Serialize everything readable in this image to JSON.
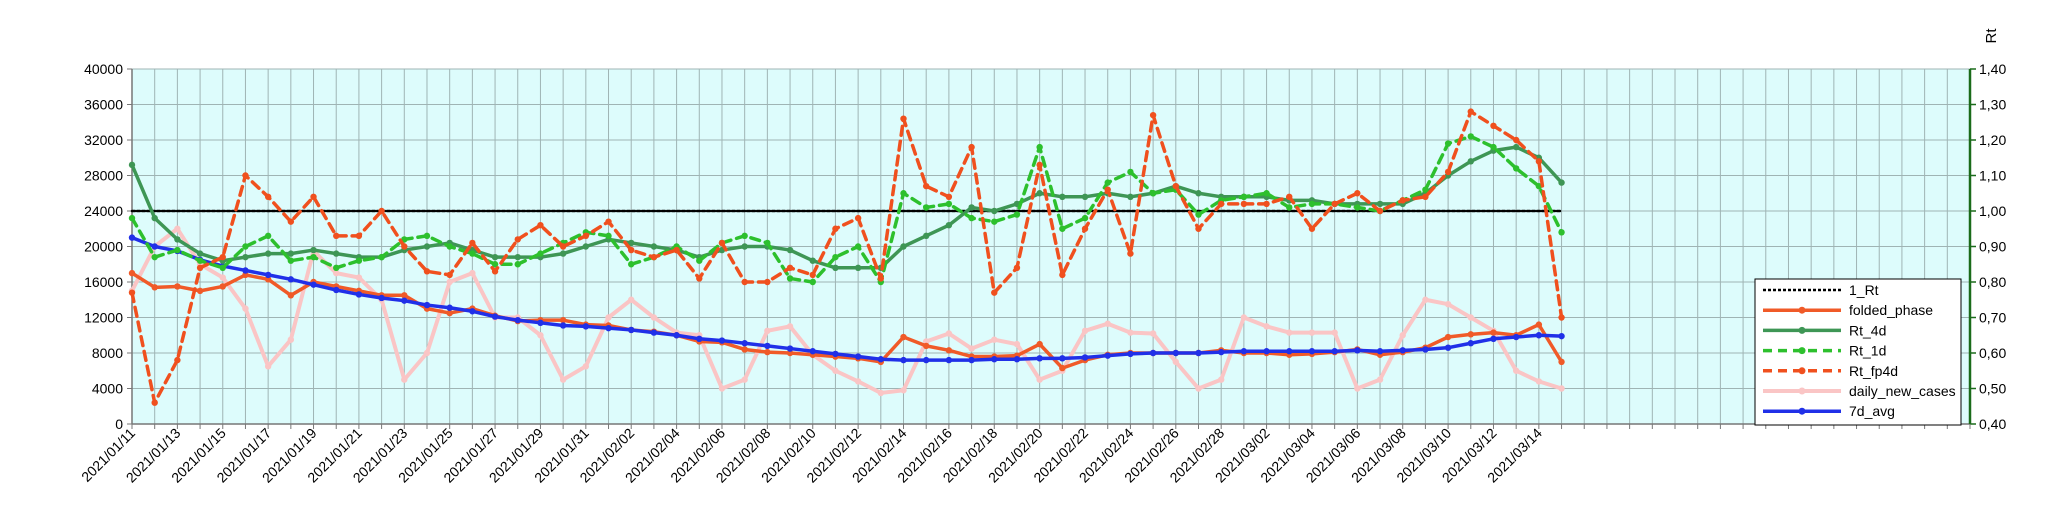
{
  "chart_data": {
    "type": "line",
    "title": "",
    "xlabel": "",
    "ylabel": "",
    "y2label": "Rt",
    "ylim": [
      0,
      40000
    ],
    "y2lim": [
      0.4,
      1.4
    ],
    "yticks": [
      "0",
      "4000",
      "8000",
      "12000",
      "16000",
      "20000",
      "24000",
      "28000",
      "32000",
      "36000",
      "40000"
    ],
    "y2ticks": [
      "0,40",
      "0,50",
      "0,60",
      "0,70",
      "0,80",
      "0,90",
      "1,00",
      "1,10",
      "1,20",
      "1,30",
      "1,40"
    ],
    "grid": true,
    "legend_position": "right",
    "colors": {
      "plot_background": "#ddfcfc",
      "grid": "#9fb4b4",
      "left_axis": "#777777",
      "right_axis": "#1a6b1a"
    },
    "x": [
      "2021/01/11",
      "2021/01/12",
      "2021/01/13",
      "2021/01/14",
      "2021/01/15",
      "2021/01/16",
      "2021/01/17",
      "2021/01/18",
      "2021/01/19",
      "2021/01/20",
      "2021/01/21",
      "2021/01/22",
      "2021/01/23",
      "2021/01/24",
      "2021/01/25",
      "2021/01/26",
      "2021/01/27",
      "2021/01/28",
      "2021/01/29",
      "2021/01/30",
      "2021/01/31",
      "2021/02/01",
      "2021/02/02",
      "2021/02/03",
      "2021/02/04",
      "2021/02/05",
      "2021/02/06",
      "2021/02/07",
      "2021/02/08",
      "2021/02/09",
      "2021/02/10",
      "2021/02/11",
      "2021/02/12",
      "2021/02/13",
      "2021/02/14",
      "2021/02/15",
      "2021/02/16",
      "2021/02/17",
      "2021/02/18",
      "2021/02/19",
      "2021/02/20",
      "2021/02/21",
      "2021/02/22",
      "2021/02/23",
      "2021/02/24",
      "2021/02/25",
      "2021/02/26",
      "2021/02/27",
      "2021/02/28",
      "2021/03/01",
      "2021/03/02",
      "2021/03/03",
      "2021/03/04",
      "2021/03/05",
      "2021/03/06",
      "2021/03/07",
      "2021/03/08",
      "2021/03/09",
      "2021/03/10",
      "2021/03/11",
      "2021/03/12",
      "2021/03/13",
      "2021/03/14",
      "2021/03/15"
    ],
    "x_axis_extent_days": 81,
    "x_tick_labels": [
      "2021/01/11",
      "2021/01/13",
      "2021/01/15",
      "2021/01/17",
      "2021/01/19",
      "2021/01/21",
      "2021/01/23",
      "2021/01/25",
      "2021/01/27",
      "2021/01/29",
      "2021/01/31",
      "2021/02/02",
      "2021/02/04",
      "2021/02/06",
      "2021/02/08",
      "2021/02/10",
      "2021/02/12",
      "2021/02/14",
      "2021/02/16",
      "2021/02/18",
      "2021/02/20",
      "2021/02/22",
      "2021/02/24",
      "2021/02/26",
      "2021/02/28",
      "2021/03/02",
      "2021/03/04",
      "2021/03/06",
      "2021/03/08",
      "2021/03/10",
      "2021/03/12",
      "2021/03/14"
    ],
    "series": [
      {
        "name": "1_Rt",
        "axis": "right",
        "color": "#000000",
        "dash": "dot",
        "marker": "none",
        "values": [
          1.0,
          1.0,
          1.0,
          1.0,
          1.0,
          1.0,
          1.0,
          1.0,
          1.0,
          1.0,
          1.0,
          1.0,
          1.0,
          1.0,
          1.0,
          1.0,
          1.0,
          1.0,
          1.0,
          1.0,
          1.0,
          1.0,
          1.0,
          1.0,
          1.0,
          1.0,
          1.0,
          1.0,
          1.0,
          1.0,
          1.0,
          1.0,
          1.0,
          1.0,
          1.0,
          1.0,
          1.0,
          1.0,
          1.0,
          1.0,
          1.0,
          1.0,
          1.0,
          1.0,
          1.0,
          1.0,
          1.0,
          1.0,
          1.0,
          1.0,
          1.0,
          1.0,
          1.0,
          1.0,
          1.0,
          1.0,
          1.0,
          1.0,
          1.0,
          1.0,
          1.0,
          1.0,
          1.0,
          1.0
        ]
      },
      {
        "name": "folded_phase",
        "axis": "left",
        "color": "#f05a28",
        "dash": "solid",
        "marker": "dot",
        "values": [
          17000,
          15400,
          15500,
          15000,
          15500,
          16800,
          16300,
          14500,
          16000,
          15500,
          15000,
          14500,
          14500,
          13000,
          12500,
          13000,
          12200,
          11600,
          11700,
          11700,
          11200,
          11100,
          10600,
          10400,
          10000,
          9300,
          9200,
          8400,
          8100,
          8000,
          7800,
          7600,
          7400,
          7000,
          9800,
          8800,
          8300,
          7600,
          7600,
          7700,
          9000,
          6300,
          7200,
          7800,
          8000,
          8000,
          8000,
          8000,
          8300,
          8000,
          8000,
          7800,
          7900,
          8100,
          8400,
          7800,
          8100,
          8600,
          9800,
          10100,
          10300,
          10000,
          11200,
          7000
        ]
      },
      {
        "name": "Rt_4d",
        "axis": "right",
        "color": "#3e9655",
        "dash": "solid",
        "marker": "dot",
        "values": [
          1.13,
          0.98,
          0.92,
          0.88,
          0.86,
          0.87,
          0.88,
          0.88,
          0.89,
          0.88,
          0.87,
          0.87,
          0.89,
          0.9,
          0.91,
          0.89,
          0.87,
          0.87,
          0.87,
          0.88,
          0.9,
          0.92,
          0.91,
          0.9,
          0.89,
          0.87,
          0.89,
          0.9,
          0.9,
          0.89,
          0.86,
          0.84,
          0.84,
          0.84,
          0.9,
          0.93,
          0.96,
          1.01,
          1.0,
          1.02,
          1.05,
          1.04,
          1.04,
          1.05,
          1.04,
          1.05,
          1.07,
          1.05,
          1.04,
          1.04,
          1.04,
          1.03,
          1.03,
          1.02,
          1.02,
          1.02,
          1.02,
          1.05,
          1.1,
          1.14,
          1.17,
          1.18,
          1.15,
          1.08
        ]
      },
      {
        "name": "Rt_1d",
        "axis": "right",
        "color": "#2dc02d",
        "dash": "dash",
        "marker": "dot",
        "values": [
          0.98,
          0.87,
          0.89,
          0.86,
          0.84,
          0.9,
          0.93,
          0.86,
          0.87,
          0.84,
          0.86,
          0.87,
          0.92,
          0.93,
          0.9,
          0.88,
          0.85,
          0.85,
          0.88,
          0.91,
          0.94,
          0.93,
          0.85,
          0.87,
          0.9,
          0.86,
          0.91,
          0.93,
          0.91,
          0.81,
          0.8,
          0.87,
          0.9,
          0.8,
          1.05,
          1.01,
          1.02,
          0.98,
          0.97,
          0.99,
          1.18,
          0.95,
          0.98,
          1.08,
          1.11,
          1.05,
          1.06,
          0.99,
          1.03,
          1.04,
          1.05,
          1.01,
          1.02,
          1.02,
          1.01,
          1.0,
          1.03,
          1.06,
          1.19,
          1.21,
          1.18,
          1.12,
          1.07,
          0.94
        ]
      },
      {
        "name": "Rt_fp4d",
        "axis": "right",
        "color": "#f0501e",
        "dash": "dash",
        "marker": "dot",
        "values": [
          0.77,
          0.46,
          0.58,
          0.84,
          0.87,
          1.1,
          1.04,
          0.97,
          1.04,
          0.93,
          0.93,
          1.0,
          0.9,
          0.83,
          0.82,
          0.91,
          0.83,
          0.92,
          0.96,
          0.9,
          0.93,
          0.97,
          0.89,
          0.87,
          0.89,
          0.81,
          0.91,
          0.8,
          0.8,
          0.84,
          0.82,
          0.95,
          0.98,
          0.81,
          1.26,
          1.07,
          1.04,
          1.18,
          0.77,
          0.84,
          1.13,
          0.82,
          0.95,
          1.06,
          0.88,
          1.27,
          1.07,
          0.95,
          1.02,
          1.02,
          1.02,
          1.04,
          0.95,
          1.02,
          1.05,
          1.0,
          1.03,
          1.04,
          1.11,
          1.28,
          1.24,
          1.2,
          1.14,
          0.7
        ]
      },
      {
        "name": "daily_new_cases",
        "axis": "left",
        "color": "#fac5c5",
        "dash": "solid",
        "marker": "dot",
        "values": [
          15000,
          20000,
          22000,
          18000,
          16500,
          13000,
          6500,
          9500,
          19500,
          17000,
          16500,
          14000,
          5000,
          8000,
          16000,
          17000,
          12000,
          12000,
          10000,
          5000,
          6500,
          12000,
          14000,
          12000,
          10300,
          10000,
          4000,
          5000,
          10500,
          11000,
          7800,
          6000,
          4800,
          3500,
          3800,
          9300,
          10200,
          8500,
          9500,
          9000,
          5000,
          6000,
          10500,
          11300,
          10300,
          10200,
          7000,
          4000,
          5000,
          12000,
          11000,
          10300,
          10300,
          10300,
          4000,
          5000,
          10000,
          14000,
          13500,
          12000,
          10500,
          6000,
          4800,
          4000
        ]
      },
      {
        "name": "7d_avg",
        "axis": "left",
        "color": "#2030e8",
        "dash": "solid",
        "marker": "dot",
        "values": [
          21000,
          20000,
          19500,
          18500,
          17800,
          17300,
          16800,
          16300,
          15700,
          15100,
          14600,
          14200,
          13900,
          13400,
          13100,
          12700,
          12100,
          11700,
          11400,
          11100,
          11000,
          10800,
          10600,
          10300,
          10000,
          9600,
          9400,
          9100,
          8800,
          8500,
          8200,
          7900,
          7600,
          7300,
          7200,
          7200,
          7200,
          7200,
          7300,
          7300,
          7400,
          7400,
          7500,
          7700,
          7900,
          8000,
          8000,
          8000,
          8100,
          8200,
          8200,
          8200,
          8200,
          8200,
          8300,
          8200,
          8300,
          8400,
          8600,
          9100,
          9600,
          9800,
          10000,
          9900
        ]
      }
    ]
  }
}
